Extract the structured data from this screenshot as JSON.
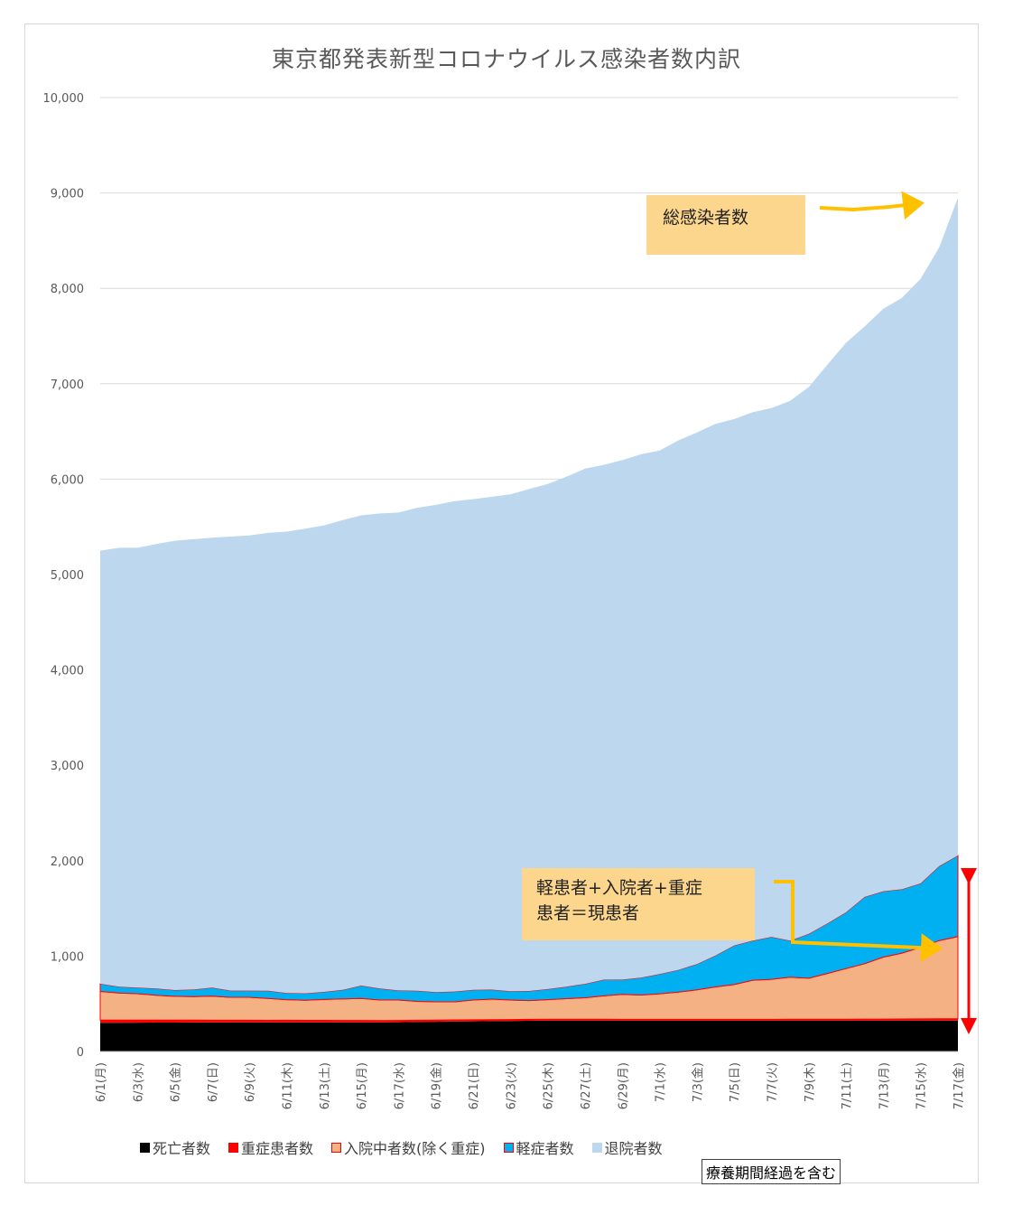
{
  "chart_data": {
    "type": "area",
    "stacked": true,
    "title": "東京都発表新型コロナウイルス感染者数内訳",
    "ylim": [
      0,
      10000
    ],
    "yticks": [
      "0",
      "1,000",
      "2,000",
      "3,000",
      "4,000",
      "5,000",
      "6,000",
      "7,000",
      "8,000",
      "9,000",
      "10,000"
    ],
    "categories": [
      "6/1(月)",
      "6/2(火)",
      "6/3(水)",
      "6/4(木)",
      "6/5(金)",
      "6/6(土)",
      "6/7(日)",
      "6/8(月)",
      "6/9(火)",
      "6/10(水)",
      "6/11(木)",
      "6/12(金)",
      "6/13(土)",
      "6/14(日)",
      "6/15(月)",
      "6/16(火)",
      "6/17(水)",
      "6/18(木)",
      "6/19(金)",
      "6/20(土)",
      "6/21(日)",
      "6/22(月)",
      "6/23(火)",
      "6/24(水)",
      "6/25(木)",
      "6/26(金)",
      "6/27(土)",
      "6/28(日)",
      "6/29(月)",
      "6/30(火)",
      "7/1(水)",
      "7/2(木)",
      "7/3(金)",
      "7/4(土)",
      "7/5(日)",
      "7/6(月)",
      "7/7(火)",
      "7/8(水)",
      "7/9(木)",
      "7/10(金)",
      "7/11(土)",
      "7/12(日)",
      "7/13(月)",
      "7/14(火)",
      "7/15(水)",
      "7/16(木)",
      "7/17(金)"
    ],
    "x_labels_shown": [
      "6/1(月)",
      "6/3(水)",
      "6/5(金)",
      "6/7(日)",
      "6/9(火)",
      "6/11(木)",
      "6/13(土)",
      "6/15(月)",
      "6/17(水)",
      "6/19(金)",
      "6/21(日)",
      "6/23(火)",
      "6/25(木)",
      "6/27(土)",
      "6/29(月)",
      "7/1(水)",
      "7/3(金)",
      "7/5(日)",
      "7/7(火)",
      "7/9(木)",
      "7/11(土)",
      "7/13(月)",
      "7/15(水)",
      "7/17(金)"
    ],
    "series": [
      {
        "name": "死亡者数",
        "color": "#000000",
        "values": [
          300,
          301,
          302,
          303,
          303,
          304,
          304,
          305,
          305,
          305,
          306,
          306,
          306,
          306,
          306,
          306,
          307,
          310,
          312,
          314,
          316,
          318,
          320,
          322,
          325,
          325,
          325,
          325,
          325,
          325,
          325,
          325,
          325,
          325,
          325,
          325,
          325,
          325,
          325,
          325,
          325,
          325,
          325,
          325,
          325,
          325,
          325
        ]
      },
      {
        "name": "重症患者数",
        "color": "#ff0000",
        "values": [
          30,
          29,
          28,
          27,
          26,
          25,
          24,
          23,
          23,
          22,
          22,
          21,
          21,
          20,
          20,
          19,
          19,
          18,
          17,
          17,
          16,
          16,
          15,
          15,
          14,
          14,
          13,
          13,
          12,
          12,
          12,
          12,
          12,
          12,
          12,
          12,
          12,
          13,
          13,
          13,
          14,
          15,
          15,
          16,
          17,
          18,
          20
        ]
      },
      {
        "name": "入院中者数(除く重症)",
        "color": "#f4b183",
        "values": [
          300,
          284,
          276,
          260,
          250,
          246,
          252,
          240,
          240,
          230,
          216,
          210,
          218,
          225,
          230,
          215,
          214,
          198,
          192,
          190,
          208,
          215,
          205,
          197,
          205,
          215,
          225,
          245,
          262,
          255,
          268,
          285,
          310,
          340,
          365,
          410,
          420,
          440,
          430,
          480,
          530,
          580,
          650,
          690,
          750,
          820,
          860
        ]
      },
      {
        "name": "軽症者数",
        "color": "#00b0f0",
        "values": [
          80,
          66,
          64,
          70,
          65,
          75,
          90,
          70,
          70,
          80,
          70,
          73,
          80,
          95,
          135,
          120,
          100,
          110,
          102,
          108,
          106,
          100,
          92,
          100,
          110,
          126,
          146,
          170,
          155,
          183,
          207,
          233,
          270,
          330,
          410,
          415,
          445,
          385,
          465,
          525,
          590,
          700,
          690,
          670,
          670,
          780,
          850
        ]
      },
      {
        "name": "退院者数",
        "color": "#bdd7ee",
        "values": [
          4540,
          4600,
          4610,
          4660,
          4710,
          4720,
          4715,
          4760,
          4772,
          4800,
          4836,
          4870,
          4890,
          4924,
          4929,
          4980,
          5010,
          5064,
          5107,
          5140,
          5144,
          5166,
          5208,
          5262,
          5296,
          5345,
          5401,
          5397,
          5446,
          5485,
          5488,
          5550,
          5573,
          5573,
          5518,
          5541,
          5542,
          5657,
          5732,
          5857,
          5971,
          5980,
          6107,
          6199,
          6338,
          6487,
          6895
        ]
      }
    ],
    "legend_position": "bottom",
    "grid": true
  },
  "annotations": {
    "total_label": "総感染者数",
    "current_label_line1": "軽患者+入院者+重症",
    "current_label_line2": "患者＝現患者",
    "note": "療養期間経過を含む"
  }
}
